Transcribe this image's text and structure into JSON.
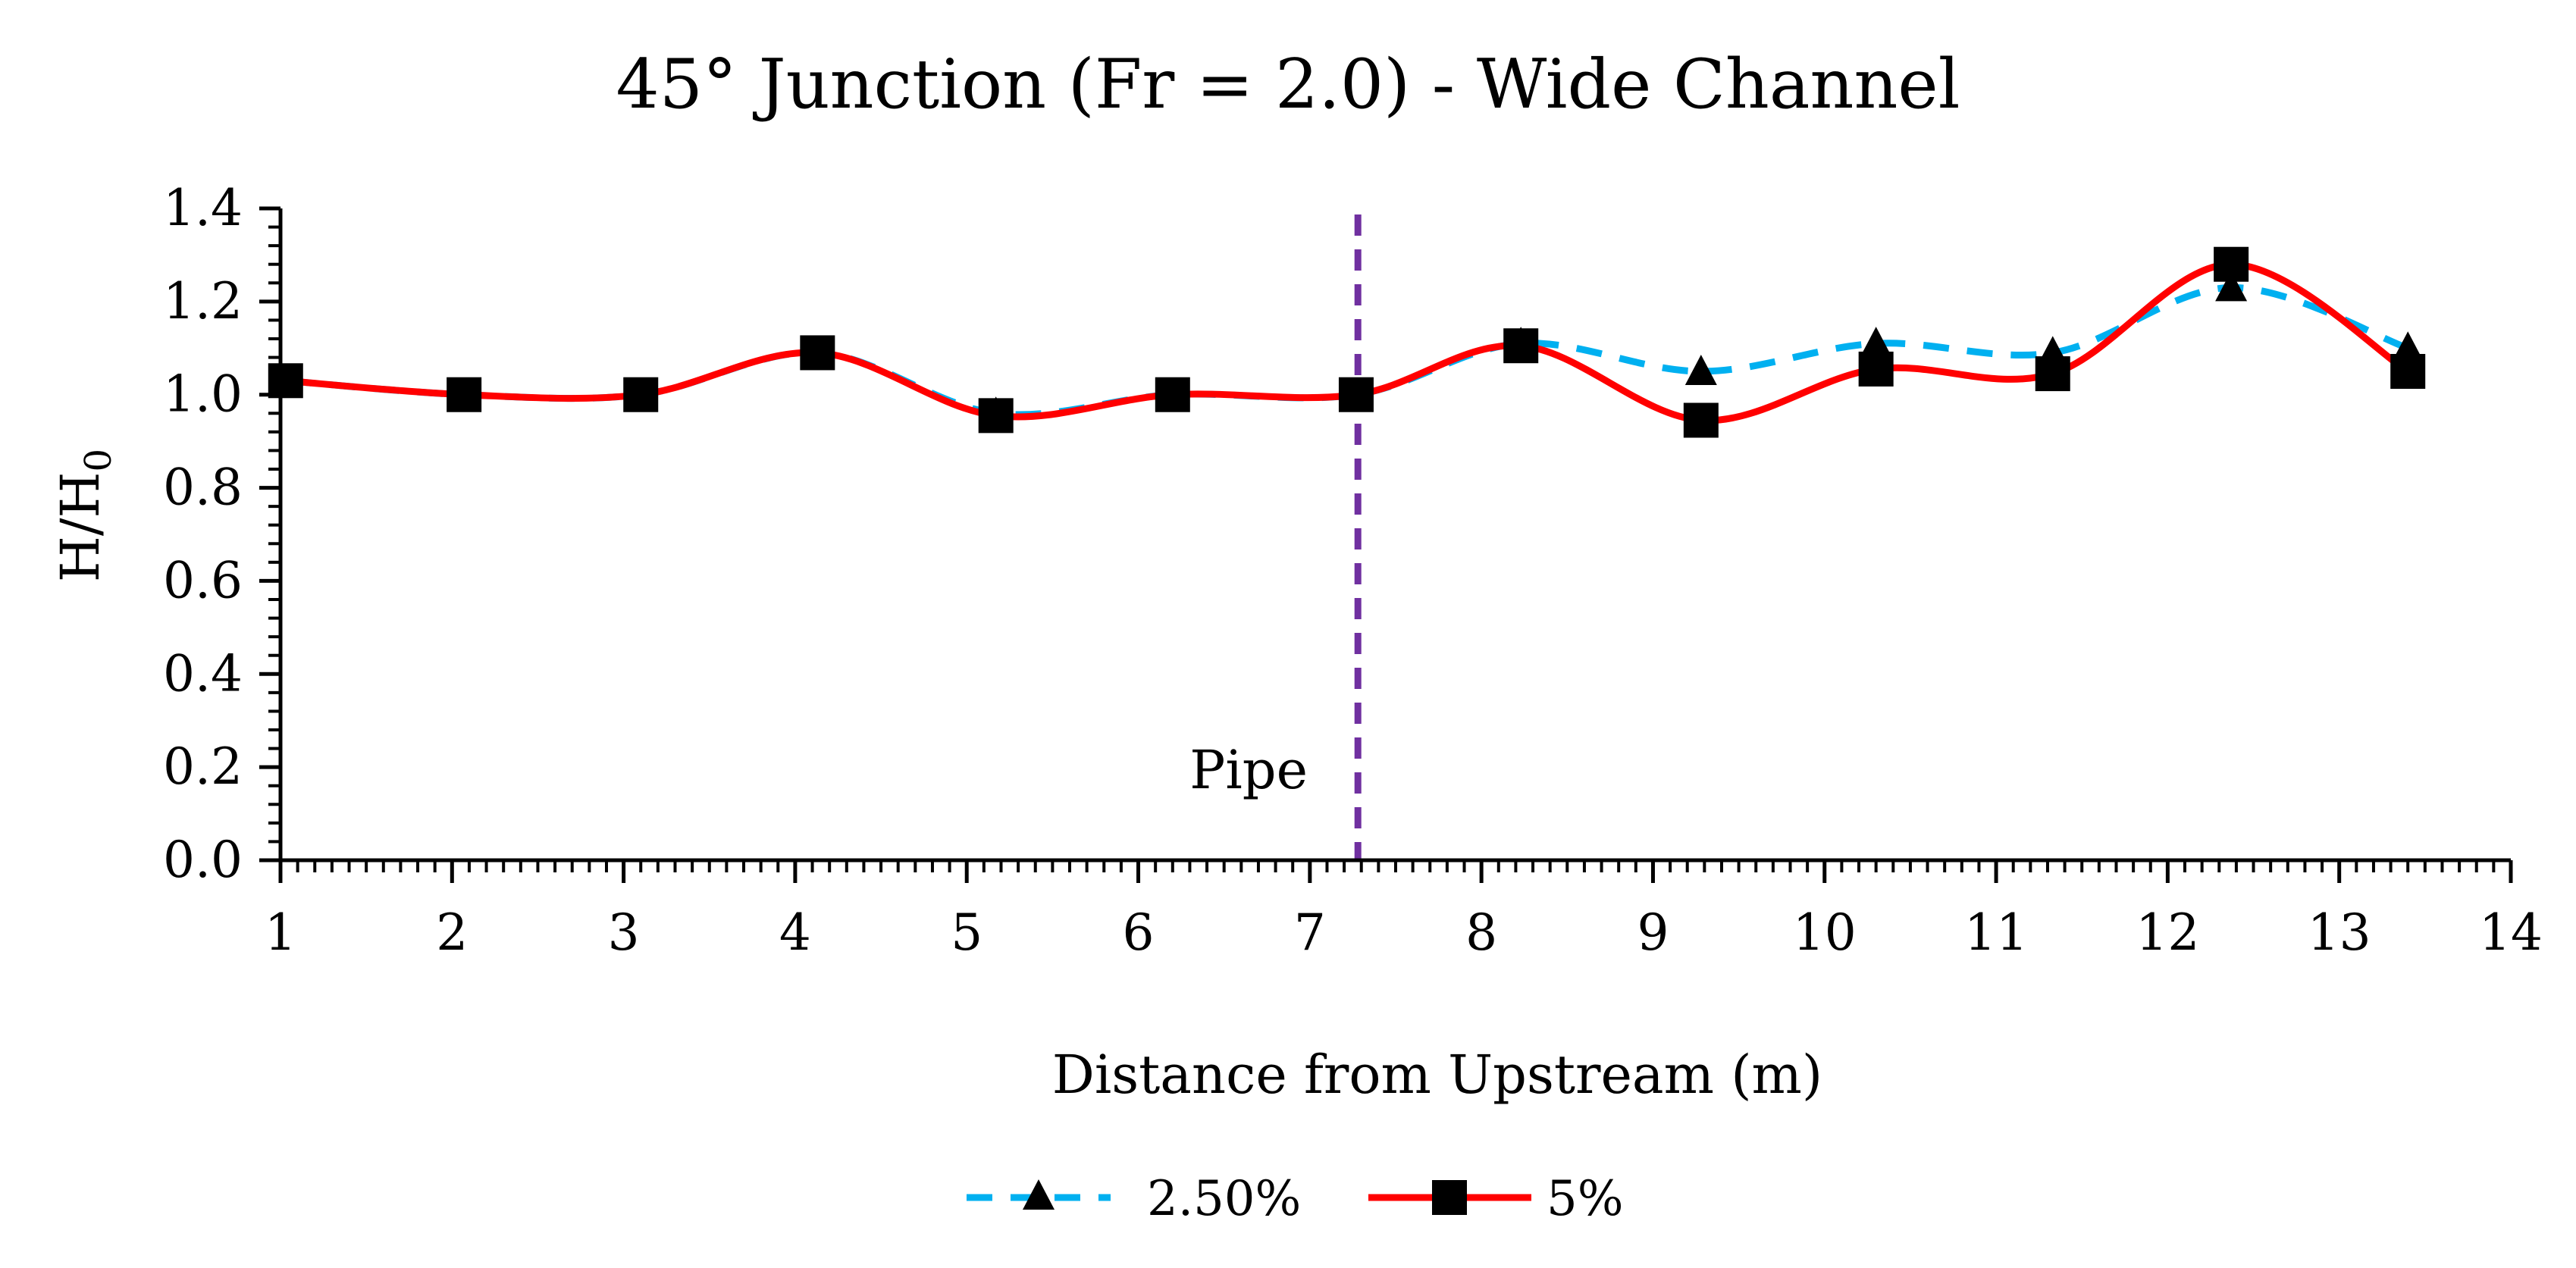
{
  "chart_data": {
    "type": "line",
    "title": "45° Junction (Fr = 2.0) - Wide Channel",
    "xlabel": "Distance from Upstream (m)",
    "ylabel": "H/H",
    "ylabel_subscript": "0",
    "xlim": [
      1,
      14
    ],
    "ylim": [
      0.0,
      1.4
    ],
    "xticks": [
      1,
      2,
      3,
      4,
      5,
      6,
      7,
      8,
      9,
      10,
      11,
      12,
      13,
      14
    ],
    "yticks": [
      "0.0",
      "0.2",
      "0.4",
      "0.6",
      "0.8",
      "1.0",
      "1.2",
      "1.4"
    ],
    "grid": false,
    "legend_position": "bottom",
    "annotation": {
      "text": "Pipe",
      "x": 7.28,
      "color": "#7030a0"
    },
    "series": [
      {
        "name": "2.50%",
        "color": "#00b0f0",
        "style": "dashed",
        "marker": "triangle",
        "x": [
          1.03,
          2.07,
          3.1,
          4.13,
          5.17,
          6.2,
          7.27,
          8.23,
          9.28,
          10.3,
          11.33,
          12.37,
          13.4
        ],
        "y": [
          1.03,
          1.0,
          1.0,
          1.09,
          0.96,
          1.0,
          1.0,
          1.11,
          1.05,
          1.11,
          1.09,
          1.23,
          1.1
        ]
      },
      {
        "name": "5%",
        "color": "#ff0000",
        "style": "solid",
        "marker": "square",
        "x": [
          1.03,
          2.07,
          3.1,
          4.13,
          5.17,
          6.2,
          7.27,
          8.23,
          9.28,
          10.3,
          11.33,
          12.37,
          13.4
        ],
        "y": [
          1.03,
          1.0,
          1.0,
          1.09,
          0.955,
          1.0,
          1.0,
          1.105,
          0.945,
          1.055,
          1.045,
          1.28,
          1.05
        ]
      }
    ]
  }
}
